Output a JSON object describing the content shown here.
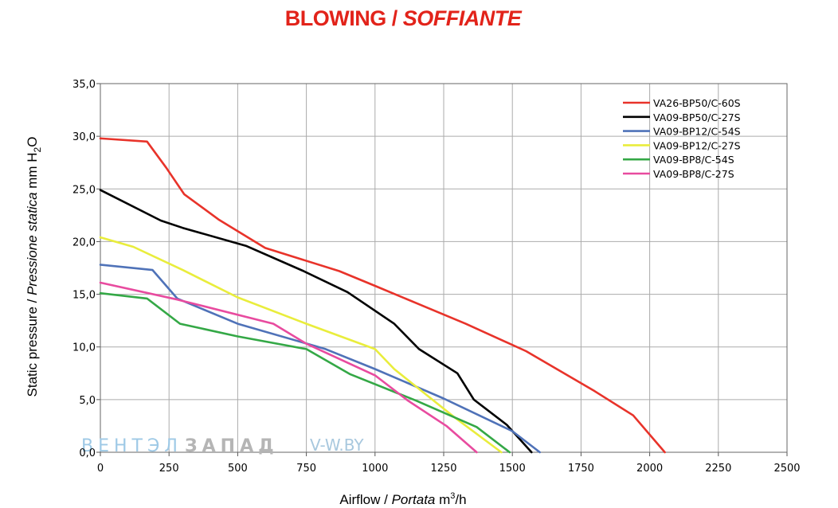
{
  "title": {
    "main": "BLOWING / ",
    "italic": "SOFFIANTE"
  },
  "axis": {
    "y_label_plain": "Static pressure / ",
    "y_label_italic": "Pressione statica",
    "y_label_unit": "  mm  H",
    "y_label_sub": "2",
    "y_label_tail": "O",
    "x_label_plain": "Airflow / ",
    "x_label_italic": "Portata",
    "x_label_unit": "  m",
    "x_label_sup": "3",
    "x_label_tail": "/h"
  },
  "watermark": {
    "part1": "ВЕНТЭЛ",
    "part2": "ЗАПАД",
    "part3": "V-W.BY"
  },
  "chart_data": {
    "type": "line",
    "xlim": [
      0,
      2500
    ],
    "ylim": [
      0,
      35
    ],
    "x_ticks": [
      0,
      250,
      500,
      750,
      1000,
      1250,
      1500,
      1750,
      2000,
      2250,
      2500
    ],
    "y_ticks": [
      0,
      5,
      10,
      15,
      20,
      25,
      30,
      35
    ],
    "x_tick_labels": [
      "0",
      "250",
      "500",
      "750",
      "1000",
      "1250",
      "1500",
      "1750",
      "2000",
      "2250",
      "2500"
    ],
    "y_tick_labels": [
      "0,0",
      "5,0",
      "10,0",
      "15,0",
      "20,0",
      "25,0",
      "30,0",
      "35,0"
    ],
    "grid": true,
    "legend_position": "top-right",
    "series": [
      {
        "name": "VA26-BP50/C-60S",
        "color": "#e8332a",
        "points": [
          [
            0,
            29.8
          ],
          [
            170,
            29.5
          ],
          [
            240,
            27
          ],
          [
            305,
            24.5
          ],
          [
            430,
            22.1
          ],
          [
            600,
            19.4
          ],
          [
            870,
            17.2
          ],
          [
            1000,
            15.8
          ],
          [
            1330,
            12.2
          ],
          [
            1550,
            9.6
          ],
          [
            1800,
            5.8
          ],
          [
            1940,
            3.5
          ],
          [
            2055,
            0
          ]
        ]
      },
      {
        "name": "VA09-BP50/C-27S",
        "color": "#000000",
        "points": [
          [
            0,
            24.9
          ],
          [
            220,
            22.0
          ],
          [
            300,
            21.3
          ],
          [
            530,
            19.6
          ],
          [
            740,
            17.2
          ],
          [
            900,
            15.2
          ],
          [
            1070,
            12.2
          ],
          [
            1160,
            9.8
          ],
          [
            1300,
            7.5
          ],
          [
            1360,
            5.0
          ],
          [
            1480,
            2.6
          ],
          [
            1570,
            0
          ]
        ]
      },
      {
        "name": "VA09-BP12/C-54S",
        "color": "#4f72b8",
        "points": [
          [
            0,
            17.8
          ],
          [
            190,
            17.3
          ],
          [
            280,
            14.6
          ],
          [
            500,
            12.2
          ],
          [
            820,
            9.8
          ],
          [
            1000,
            7.9
          ],
          [
            1250,
            5.1
          ],
          [
            1500,
            2.0
          ],
          [
            1600,
            0
          ]
        ]
      },
      {
        "name": "VA09-BP12/C-27S",
        "color": "#e9ed3c",
        "points": [
          [
            0,
            20.4
          ],
          [
            120,
            19.5
          ],
          [
            300,
            17.3
          ],
          [
            500,
            14.7
          ],
          [
            750,
            12.2
          ],
          [
            1000,
            9.8
          ],
          [
            1070,
            7.9
          ],
          [
            1290,
            3.3
          ],
          [
            1460,
            0
          ]
        ]
      },
      {
        "name": "VA09-BP8/C-54S",
        "color": "#34a846",
        "points": [
          [
            0,
            15.1
          ],
          [
            170,
            14.6
          ],
          [
            290,
            12.2
          ],
          [
            500,
            11.0
          ],
          [
            750,
            9.8
          ],
          [
            910,
            7.4
          ],
          [
            1150,
            4.9
          ],
          [
            1370,
            2.4
          ],
          [
            1490,
            0
          ]
        ]
      },
      {
        "name": "VA09-BP8/C-27S",
        "color": "#e84b9f",
        "points": [
          [
            0,
            16.1
          ],
          [
            280,
            14.5
          ],
          [
            630,
            12.2
          ],
          [
            750,
            10.3
          ],
          [
            1000,
            7.3
          ],
          [
            1120,
            4.9
          ],
          [
            1260,
            2.5
          ],
          [
            1370,
            0
          ]
        ]
      }
    ]
  }
}
